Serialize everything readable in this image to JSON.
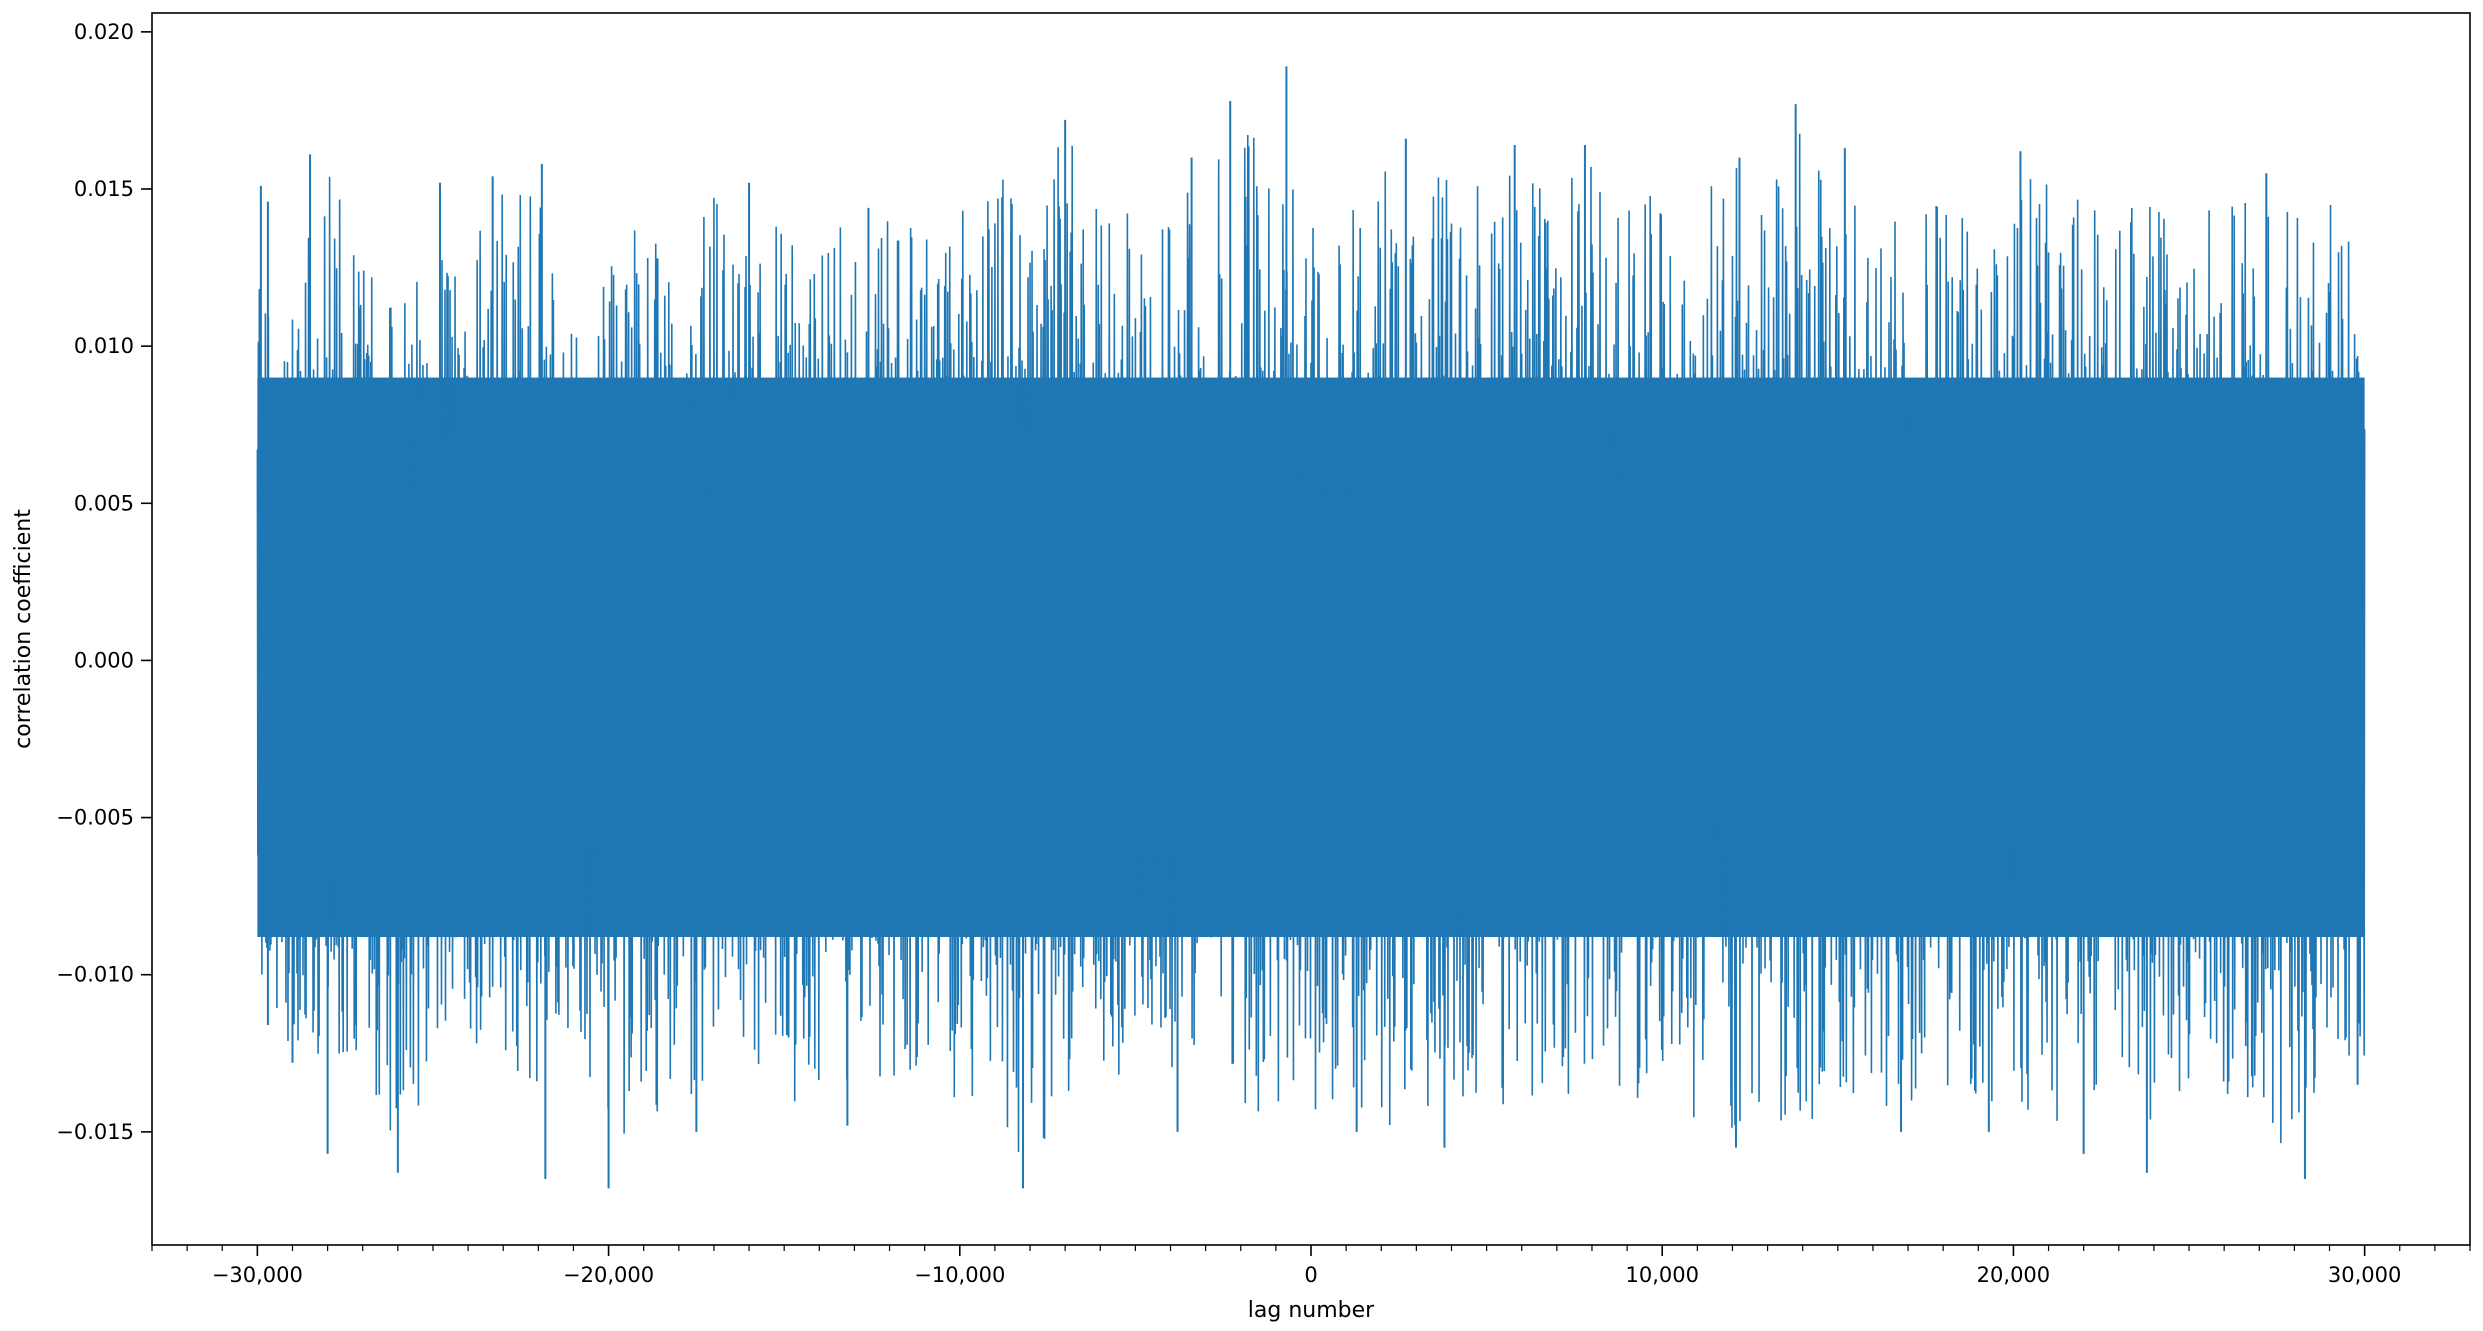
{
  "chart_data": {
    "type": "line",
    "title": "",
    "xlabel": "lag number",
    "ylabel": "correlation coefficient",
    "xlim": [
      -33000,
      33000
    ],
    "ylim": [
      -0.0186,
      0.0206
    ],
    "x_ticks": [
      -30000,
      -20000,
      -10000,
      0,
      10000,
      20000,
      30000
    ],
    "x_tick_labels": [
      "−30,000",
      "−20,000",
      "−10,000",
      "0",
      "10,000",
      "20,000",
      "30,000"
    ],
    "y_ticks": [
      -0.015,
      -0.01,
      -0.005,
      0.0,
      0.005,
      0.01,
      0.015,
      0.02
    ],
    "y_tick_labels": [
      "−0.015",
      "−0.010",
      "−0.005",
      "0.000",
      "0.005",
      "0.010",
      "0.015",
      "0.020"
    ],
    "x_minor_tick_step": 1000,
    "grid": false,
    "legend": "none",
    "series": [
      {
        "color": "#1f77b4",
        "x_range": [
          -30000,
          30000
        ],
        "envelope": {
          "x": [
            -30000,
            -29000,
            -28000,
            -27000,
            -26000,
            -25000,
            -24000,
            -23000,
            -22000,
            -21000,
            -20000,
            -19000,
            -18000,
            -17000,
            -16000,
            -15000,
            -14000,
            -13000,
            -12000,
            -11000,
            -10000,
            -9000,
            -8000,
            -7000,
            -6000,
            -5000,
            -4000,
            -3000,
            -2000,
            -1000,
            0,
            1000,
            2000,
            3000,
            4000,
            5000,
            6000,
            7000,
            8000,
            9000,
            10000,
            11000,
            12000,
            13000,
            14000,
            15000,
            16000,
            17000,
            18000,
            19000,
            20000,
            21000,
            22000,
            23000,
            24000,
            25000,
            26000,
            27000,
            28000,
            29000,
            30000
          ],
          "upper": [
            0.012,
            0.0125,
            0.0161,
            0.0125,
            0.0128,
            0.0142,
            0.013,
            0.015,
            0.0158,
            0.014,
            0.0125,
            0.0145,
            0.013,
            0.0152,
            0.0135,
            0.0142,
            0.0138,
            0.0143,
            0.0148,
            0.0145,
            0.0143,
            0.016,
            0.0138,
            0.0172,
            0.0145,
            0.015,
            0.0145,
            0.016,
            0.0178,
            0.016,
            0.0145,
            0.014,
            0.0165,
            0.0148,
            0.0158,
            0.015,
            0.0165,
            0.0148,
            0.0162,
            0.0145,
            0.0152,
            0.0148,
            0.016,
            0.015,
            0.0177,
            0.015,
            0.0142,
            0.0145,
            0.0148,
            0.015,
            0.015,
            0.0162,
            0.0145,
            0.0142,
            0.015,
            0.015,
            0.0158,
            0.0145,
            0.0155,
            0.0148,
            0.013
          ],
          "lower": [
            -0.01,
            -0.0135,
            -0.013,
            -0.0125,
            -0.0163,
            -0.013,
            -0.012,
            -0.013,
            -0.014,
            -0.0135,
            -0.0168,
            -0.014,
            -0.015,
            -0.0135,
            -0.014,
            -0.014,
            -0.0142,
            -0.0138,
            -0.0135,
            -0.0135,
            -0.014,
            -0.0142,
            -0.0168,
            -0.014,
            -0.0138,
            -0.0135,
            -0.013,
            -0.014,
            -0.0142,
            -0.0145,
            -0.0145,
            -0.014,
            -0.015,
            -0.0143,
            -0.014,
            -0.0145,
            -0.0138,
            -0.0142,
            -0.0135,
            -0.014,
            -0.0138,
            -0.0148,
            -0.015,
            -0.0148,
            -0.015,
            -0.014,
            -0.0138,
            -0.015,
            -0.0142,
            -0.0145,
            -0.015,
            -0.0148,
            -0.0152,
            -0.0135,
            -0.015,
            -0.0145,
            -0.015,
            -0.014,
            -0.0165,
            -0.014,
            -0.0135
          ],
          "dense_upper": 0.009,
          "dense_lower": -0.0088
        },
        "spikes": [
          {
            "x": -29900,
            "y": 0.0151
          },
          {
            "x": -29700,
            "y": 0.0146
          },
          {
            "x": -28500,
            "y": 0.0161
          },
          {
            "x": -24800,
            "y": 0.0152
          },
          {
            "x": -23300,
            "y": 0.0154
          },
          {
            "x": -21900,
            "y": 0.0158
          },
          {
            "x": -16000,
            "y": 0.0152
          },
          {
            "x": -12600,
            "y": 0.0144
          },
          {
            "x": -7000,
            "y": 0.0172
          },
          {
            "x": -3400,
            "y": 0.016
          },
          {
            "x": -2300,
            "y": 0.0178
          },
          {
            "x": -700,
            "y": 0.0189
          },
          {
            "x": 2700,
            "y": 0.0166
          },
          {
            "x": 5800,
            "y": 0.0164
          },
          {
            "x": 7800,
            "y": 0.0164
          },
          {
            "x": 12200,
            "y": 0.016
          },
          {
            "x": 13800,
            "y": 0.0177
          },
          {
            "x": 15200,
            "y": 0.0163
          },
          {
            "x": 20200,
            "y": 0.0162
          },
          {
            "x": 27200,
            "y": 0.0155
          },
          {
            "x": -29700,
            "y": -0.0116
          },
          {
            "x": -29000,
            "y": -0.0128
          },
          {
            "x": -28000,
            "y": -0.0157
          },
          {
            "x": -26000,
            "y": -0.0163
          },
          {
            "x": -21800,
            "y": -0.0165
          },
          {
            "x": -20000,
            "y": -0.0168
          },
          {
            "x": -17500,
            "y": -0.015
          },
          {
            "x": -13200,
            "y": -0.0148
          },
          {
            "x": -8200,
            "y": -0.0168
          },
          {
            "x": -3800,
            "y": -0.015
          },
          {
            "x": 1300,
            "y": -0.015
          },
          {
            "x": 3800,
            "y": -0.0155
          },
          {
            "x": 12100,
            "y": -0.0155
          },
          {
            "x": 16800,
            "y": -0.015
          },
          {
            "x": 19300,
            "y": -0.015
          },
          {
            "x": 22000,
            "y": -0.0157
          },
          {
            "x": 23800,
            "y": -0.0163
          },
          {
            "x": 28300,
            "y": -0.0165
          },
          {
            "x": 29800,
            "y": -0.0135
          }
        ]
      }
    ]
  }
}
